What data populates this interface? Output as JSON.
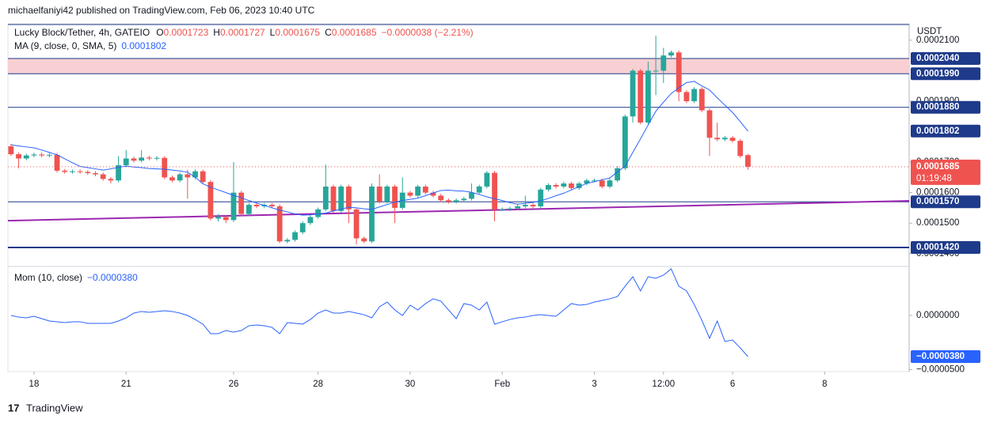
{
  "header": {
    "publisher": "michaelfaniyi42 published on TradingView.com, Feb 06, 2023 10:40 UTC"
  },
  "footer": {
    "brand": "TradingView"
  },
  "chart_data": {
    "type": "candlestick",
    "symbol": "Lucky Block/Tether, 4h, GATEIO",
    "ohlc_labels": [
      "O",
      "H",
      "L",
      "C"
    ],
    "change": "−0.0000038 (−2.21%)",
    "currency": "USDT",
    "countdown": "01:19:48",
    "up_color": "#26a69a",
    "down_color": "#ef5350",
    "open": [
      0.0001752,
      0.0001726,
      0.0001712,
      0.0001722,
      0.0001725,
      0.0001722,
      0.0001724,
      0.0001672,
      0.0001668,
      0.000167,
      0.0001668,
      0.0001664,
      0.000166,
      0.0001645,
      0.000164,
      0.000169,
      0.0001712,
      0.0001705,
      0.0001715,
      0.0001712,
      0.0001714,
      0.000165,
      0.000164,
      0.000166,
      0.000165,
      0.000167,
      0.0001635,
      0.0001515,
      0.000152,
      0.000151,
      0.00016,
      0.000153,
      0.000156,
      0.0001555,
      0.000156,
      0.0001555,
      0.000144,
      0.0001445,
      0.000147,
      0.00015,
      0.000152,
      0.0001545,
      0.000162,
      0.000154,
      0.000162,
      0.0001545,
      0.000145,
      0.000144,
      0.000162,
      0.000157,
      0.000162,
      0.000155,
      0.00016,
      0.000159,
      0.000162,
      0.00016,
      0.000159,
      0.0001575,
      0.000157,
      0.0001575,
      0.000158,
      0.00016,
      0.000162,
      0.0001665,
      0.0001545,
      0.0001545,
      0.0001548,
      0.0001555,
      0.000156,
      0.0001555,
      0.000161,
      0.0001625,
      0.000162,
      0.000163,
      0.0001615,
      0.000163,
      0.000164,
      0.000164,
      0.000162,
      0.000164,
      0.000168,
      0.000185,
      0.0002,
      0.000183,
      0.0002,
      0.0002,
      0.000205,
      0.000206,
      0.000193,
      0.00019,
      0.000194,
      0.000187,
      0.000178,
      0.0001775,
      0.000178,
      0.000177,
      0.0001723
    ],
    "high": [
      0.000176,
      0.0001732,
      0.0001728,
      0.0001731,
      0.0001731,
      0.000173,
      0.000173,
      0.0001678,
      0.0001676,
      0.0001676,
      0.0001674,
      0.000167,
      0.0001666,
      0.0001651,
      0.000172,
      0.000174,
      0.0001718,
      0.000174,
      0.0001721,
      0.000172,
      0.000172,
      0.0001656,
      0.0001666,
      0.0001675,
      0.0001676,
      0.0001676,
      0.0001641,
      0.000153,
      0.0001526,
      0.00017,
      0.0001606,
      0.0001566,
      0.0001566,
      0.0001566,
      0.0001566,
      0.0001561,
      0.0001451,
      0.0001476,
      0.0001506,
      0.0001526,
      0.0001551,
      0.0001692,
      0.0001626,
      0.0001626,
      0.0001626,
      0.0001551,
      0.0001456,
      0.000163,
      0.000166,
      0.0001626,
      0.0001626,
      0.000165,
      0.0001606,
      0.0001626,
      0.0001626,
      0.0001606,
      0.0001596,
      0.0001581,
      0.0001581,
      0.0001586,
      0.000163,
      0.0001626,
      0.0001671,
      0.0001671,
      0.0001551,
      0.0001554,
      0.0001561,
      0.000159,
      0.0001566,
      0.0001616,
      0.0001631,
      0.0001631,
      0.0001636,
      0.0001636,
      0.0001636,
      0.0001646,
      0.0001646,
      0.0001646,
      0.0001646,
      0.0001686,
      0.0001856,
      0.0002006,
      0.0002006,
      0.000203,
      0.0002115,
      0.0002075,
      0.0002066,
      0.0002066,
      0.0001936,
      0.0001946,
      0.0001946,
      0.0001876,
      0.000183,
      0.0001786,
      0.0001786,
      0.0001776,
      0.0001727
    ],
    "low": [
      0.000172,
      0.000168,
      0.0001706,
      0.0001716,
      0.0001716,
      0.0001716,
      0.0001666,
      0.0001662,
      0.0001662,
      0.0001662,
      0.0001658,
      0.0001654,
      0.0001639,
      0.000163,
      0.0001634,
      0.0001684,
      0.0001699,
      0.0001699,
      0.0001706,
      0.0001706,
      0.0001644,
      0.0001634,
      0.0001634,
      0.000158,
      0.0001644,
      0.0001629,
      0.0001509,
      0.0001505,
      0.00015,
      0.0001504,
      0.0001524,
      0.0001524,
      0.0001549,
      0.0001549,
      0.0001549,
      0.0001434,
      0.0001434,
      0.0001439,
      0.0001464,
      0.0001494,
      0.0001514,
      0.0001539,
      0.0001534,
      0.0001534,
      0.00015,
      0.000143,
      0.0001434,
      0.0001434,
      0.0001564,
      0.0001564,
      0.00015,
      0.0001544,
      0.0001584,
      0.0001584,
      0.0001594,
      0.0001584,
      0.0001569,
      0.0001564,
      0.0001564,
      0.0001569,
      0.0001574,
      0.0001594,
      0.0001614,
      0.0001506,
      0.0001539,
      0.0001539,
      0.0001542,
      0.0001549,
      0.0001549,
      0.0001549,
      0.0001604,
      0.0001614,
      0.0001614,
      0.0001609,
      0.0001609,
      0.0001624,
      0.0001634,
      0.0001614,
      0.0001614,
      0.0001634,
      0.0001674,
      0.000183,
      0.0001824,
      0.0001824,
      0.000192,
      0.000196,
      0.0002044,
      0.00019,
      0.0001894,
      0.0001894,
      0.0001864,
      0.000172,
      0.0001769,
      0.0001769,
      0.0001764,
      0.0001714,
      0.0001675
    ],
    "close": [
      0.0001726,
      0.0001712,
      0.0001722,
      0.0001725,
      0.0001722,
      0.0001724,
      0.0001672,
      0.0001668,
      0.000167,
      0.0001668,
      0.0001664,
      0.000166,
      0.0001645,
      0.000164,
      0.000169,
      0.0001712,
      0.0001705,
      0.0001715,
      0.0001712,
      0.0001714,
      0.000165,
      0.000164,
      0.000166,
      0.000165,
      0.000167,
      0.0001635,
      0.0001515,
      0.000152,
      0.000151,
      0.00016,
      0.000153,
      0.000156,
      0.0001555,
      0.000156,
      0.0001555,
      0.000144,
      0.0001445,
      0.000147,
      0.00015,
      0.000152,
      0.0001545,
      0.000162,
      0.000154,
      0.000162,
      0.0001545,
      0.000145,
      0.000144,
      0.000162,
      0.000157,
      0.000162,
      0.000155,
      0.00016,
      0.000159,
      0.000162,
      0.00016,
      0.000159,
      0.0001575,
      0.000157,
      0.0001575,
      0.000158,
      0.00016,
      0.000162,
      0.0001665,
      0.0001545,
      0.0001545,
      0.0001548,
      0.0001555,
      0.000156,
      0.0001555,
      0.000161,
      0.0001625,
      0.000162,
      0.000163,
      0.0001615,
      0.000163,
      0.000164,
      0.000164,
      0.000162,
      0.000164,
      0.000168,
      0.000185,
      0.0002,
      0.000183,
      0.0002,
      0.0002,
      0.000205,
      0.000206,
      0.000193,
      0.00019,
      0.000194,
      0.000187,
      0.000178,
      0.0001775,
      0.000178,
      0.000177,
      0.000172,
      0.0001685
    ],
    "ma": {
      "name": "MA (9, close, 0, SMA, 5)",
      "color": "#2962ff",
      "values": [
        0.0001757,
        0.0001753,
        0.000175,
        0.0001747,
        0.000174,
        0.0001732,
        0.0001724,
        0.0001711,
        0.0001698,
        0.0001686,
        0.0001682,
        0.0001678,
        0.0001674,
        0.0001678,
        0.0001683,
        0.0001687,
        0.0001684,
        0.0001682,
        0.0001679,
        0.0001678,
        0.0001677,
        0.0001674,
        0.0001671,
        0.0001667,
        0.0001651,
        0.0001629,
        0.0001618,
        0.0001609,
        0.00016,
        0.0001591,
        0.0001583,
        0.0001574,
        0.0001566,
        0.0001558,
        0.000155,
        0.0001543,
        0.0001537,
        0.000153,
        0.0001526,
        0.0001527,
        0.000153,
        0.0001533,
        0.000154,
        0.0001546,
        0.0001552,
        0.000155,
        0.0001547,
        0.0001545,
        0.0001553,
        0.0001561,
        0.0001569,
        0.0001574,
        0.0001578,
        0.0001582,
        0.000159,
        0.0001599,
        0.0001607,
        0.0001608,
        0.0001606,
        0.0001605,
        0.0001601,
        0.0001594,
        0.0001586,
        0.000158,
        0.0001574,
        0.0001567,
        0.0001562,
        0.0001565,
        0.0001568,
        0.0001573,
        0.0001581,
        0.000159,
        0.0001598,
        0.0001609,
        0.000162,
        0.000163,
        0.0001636,
        0.0001642,
        0.0001648,
        0.0001668,
        0.0001687,
        0.0001732,
        0.0001776,
        0.0001822,
        0.0001867,
        0.0001897,
        0.0001925,
        0.0001944,
        0.0001961,
        0.0001965,
        0.000195,
        0.0001937,
        0.0001911,
        0.0001887,
        0.0001863,
        0.0001833,
        0.0001802
      ]
    },
    "trendline": {
      "color": "#9c27b0",
      "x": [
        -0.4,
        117
      ],
      "values": [
        0.0001508,
        0.0001573
      ]
    },
    "levels": [
      {
        "value": 0.000204,
        "label": "0.0002040"
      },
      {
        "value": 0.000199,
        "label": "0.0001990"
      },
      {
        "value": 0.000188,
        "label": "0.0001880"
      },
      {
        "value": 0.000157,
        "label": "0.0001570"
      },
      {
        "value": 0.000142,
        "label": "0.0001420"
      }
    ],
    "level_color": "#1e3a8a",
    "zone_color": "#f8d0d3",
    "xlim": [
      -0.4,
      117
    ],
    "xticks": [
      {
        "value": 3,
        "label": "18"
      },
      {
        "value": 15,
        "label": "21"
      },
      {
        "value": 29,
        "label": "26"
      },
      {
        "value": 40,
        "label": "28"
      },
      {
        "value": 52,
        "label": "30"
      },
      {
        "value": 64,
        "label": "Feb"
      },
      {
        "value": 76,
        "label": "3"
      },
      {
        "value": 85,
        "label": "12:00"
      },
      {
        "value": 94,
        "label": "6"
      },
      {
        "value": 106,
        "label": "8"
      }
    ],
    "ylim": [
      0.0001363,
      0.0002149
    ],
    "yticks": [
      {
        "value": 0.00021,
        "label": "0.0002100"
      },
      {
        "value": 0.00019,
        "label": "0.0001900"
      },
      {
        "value": 0.00017,
        "label": "0.0001700"
      },
      {
        "value": 0.00016,
        "label": "0.0001600"
      },
      {
        "value": 0.00015,
        "label": "0.0001500"
      },
      {
        "value": 0.00014,
        "label": "0.0001400"
      }
    ],
    "mom": {
      "name": "Mom (10, close)",
      "color": "#2962ff",
      "value_label": "−0.0000380",
      "ylim": [
        -5.19e-05,
        4.46e-05
      ],
      "yticks": [
        {
          "value": 0,
          "label": "0.0000000"
        },
        {
          "value": -5e-05,
          "label": "−0.0000500"
        }
      ],
      "values": [
        0,
        -1.5e-06,
        -2.2e-06,
        -7e-07,
        -2.9e-06,
        -5.1e-06,
        -5.8e-06,
        -6.6e-06,
        -5.8e-06,
        -5.8e-06,
        -7.3e-06,
        -7.3e-06,
        -7.3e-06,
        -7.3e-06,
        -5.1e-06,
        -2.2e-06,
        2.2e-06,
        3.7e-06,
        2.9e-06,
        3.7e-06,
        4.4e-06,
        3.7e-06,
        2.2e-06,
        0,
        -3.7e-06,
        -8e-06,
        -1.68e-05,
        -1.68e-05,
        -1.39e-05,
        -1.54e-05,
        -1.39e-05,
        -9.5e-06,
        -8.8e-06,
        -9.5e-06,
        -1.1e-05,
        -1.68e-05,
        -6.6e-06,
        -7.3e-06,
        -8e-06,
        -3.7e-06,
        2.2e-06,
        5.1e-06,
        2.2e-06,
        2.2e-06,
        3.7e-06,
        2.2e-06,
        7e-07,
        -2.2e-06,
        8e-06,
        1.24e-05,
        5.1e-06,
        0,
        9.5e-06,
        5.1e-06,
        1.1e-05,
        1.54e-05,
        1.32e-05,
        5.1e-06,
        -2.9e-06,
        1.1e-05,
        9.5e-06,
        5.1e-06,
        1.24e-05,
        -8e-06,
        -5.8e-06,
        -3.7e-06,
        -2.2e-06,
        -1.5e-06,
        0,
        7e-07,
        0,
        -7e-07,
        5.1e-06,
        1.1e-05,
        9.5e-06,
        1.02e-05,
        1.24e-05,
        1.39e-05,
        1.54e-05,
        1.75e-05,
        2.7e-05,
        3.58e-05,
        2.27e-05,
        3.58e-05,
        3.44e-05,
        3.73e-05,
        4.31e-05,
        2.7e-05,
        2.27e-05,
        1.02e-05,
        -4.4e-06,
        -2.12e-05,
        -5.1e-06,
        -2.41e-05,
        -2.27e-05,
        -3e-05,
        -3.8e-05
      ]
    }
  }
}
